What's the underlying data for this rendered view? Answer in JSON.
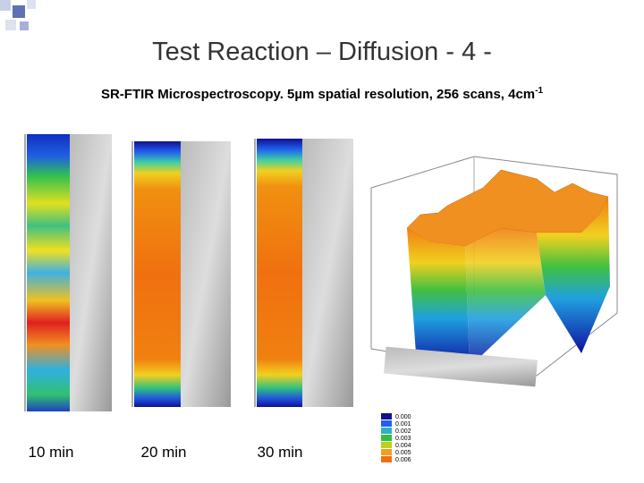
{
  "header": {
    "title": "Test Reaction – Diffusion - 4 -",
    "subtitle": {
      "text": "SR-FTIR Microspectroscopy. 5µm spatial resolution, 256 scans, 4cm",
      "superscript": "-1"
    }
  },
  "panels": [
    {
      "caption": "10 min"
    },
    {
      "caption": "20 min"
    },
    {
      "caption": "30 min"
    }
  ],
  "legend": [
    "0.000",
    "0.001",
    "0.002",
    "0.003",
    "0.004",
    "0.005",
    "0.006"
  ]
}
